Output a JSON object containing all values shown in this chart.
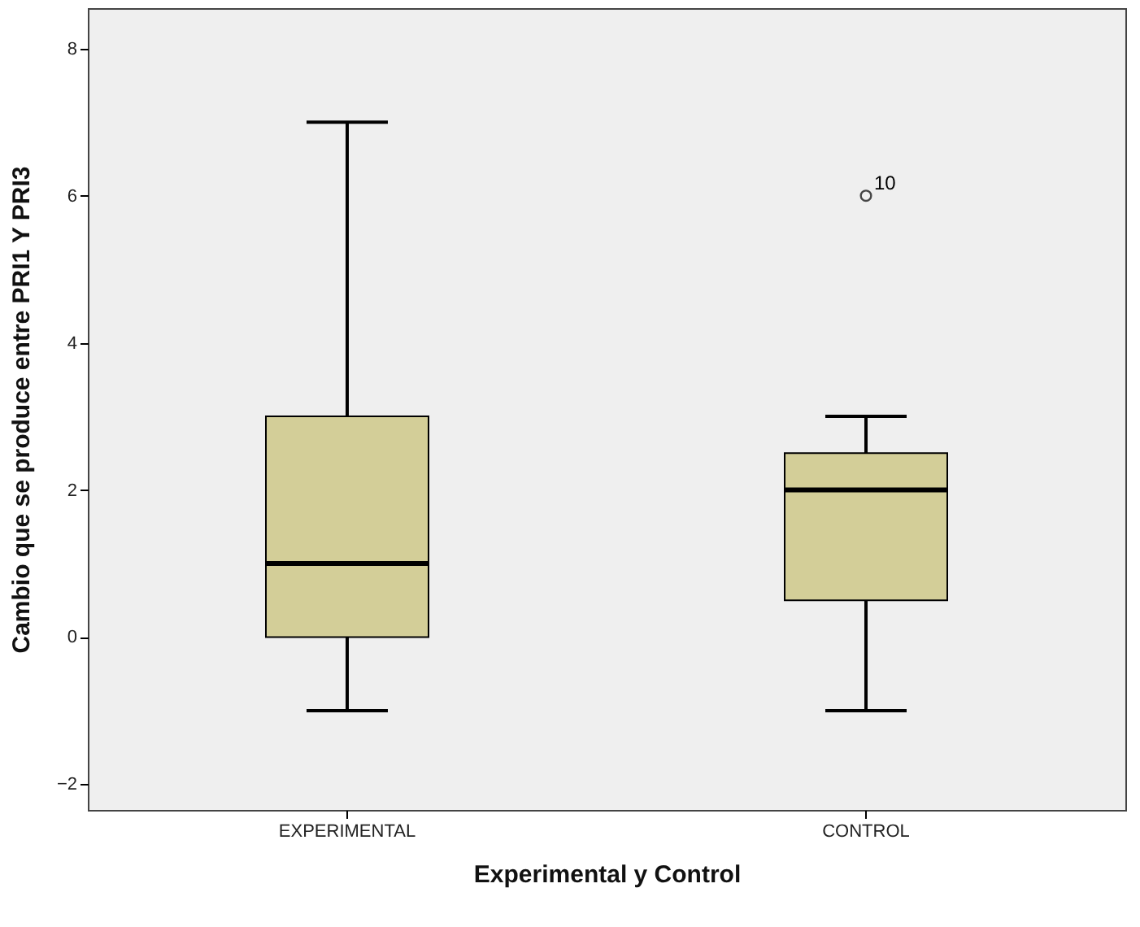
{
  "chart_data": {
    "type": "box",
    "xlabel": "Experimental y Control",
    "ylabel": "Cambio que se produce entre PRI1 Y PRI3",
    "categories": [
      "EXPERIMENTAL",
      "CONTROL"
    ],
    "boxes": [
      {
        "low": -1,
        "q1": 0,
        "median": 1,
        "q3": 3,
        "high": 7
      },
      {
        "low": -1,
        "q1": 0.5,
        "median": 2,
        "q3": 2.5,
        "high": 3,
        "outliers": [
          6
        ]
      }
    ],
    "color": "#d3ce98",
    "ylim": [
      -2.35,
      8.55
    ],
    "yticks": [
      -2,
      0,
      2,
      4,
      6,
      8
    ],
    "grid": false,
    "annotations": [
      "10"
    ]
  }
}
